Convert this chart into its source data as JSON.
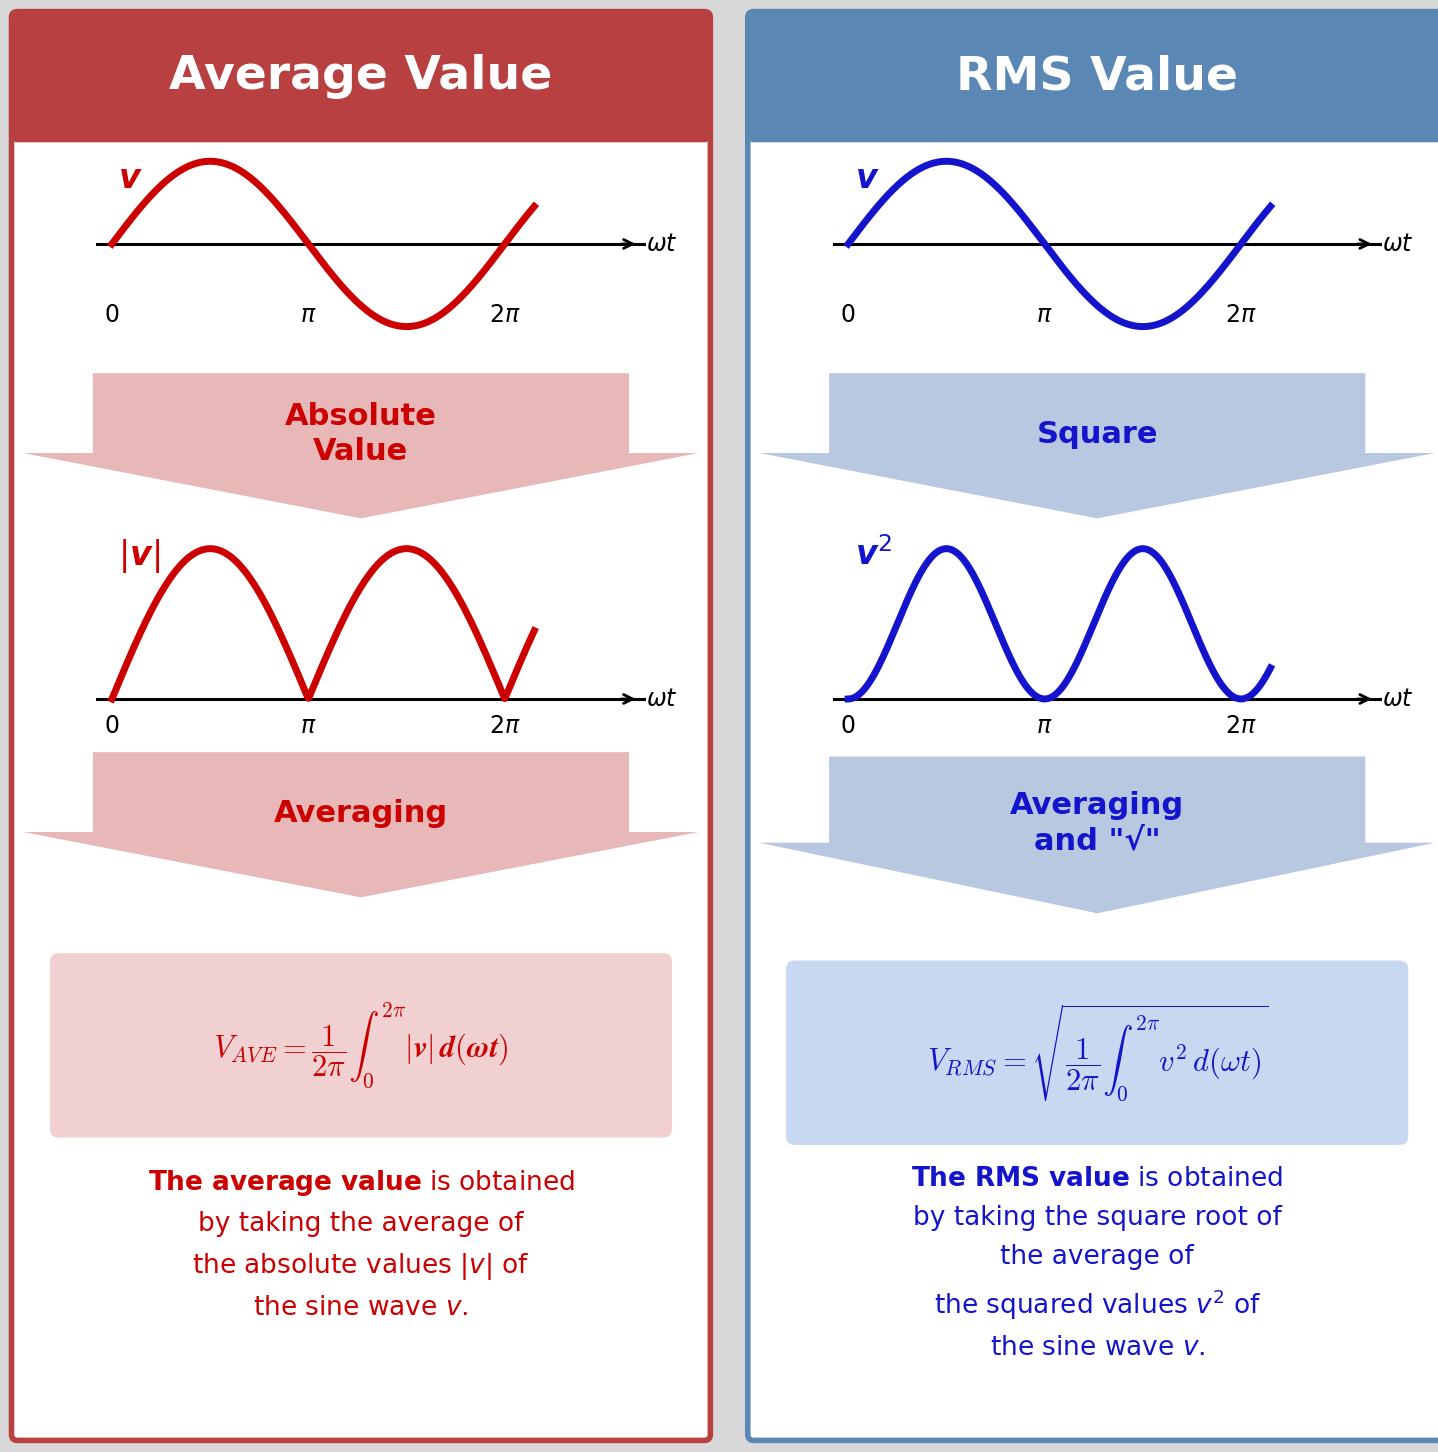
{
  "left_header_color": "#B94040",
  "right_header_color": "#5B87B5",
  "left_curve_color": "#CC0000",
  "right_curve_color": "#1414CC",
  "left_arrow_color": "#E8B8B8",
  "right_arrow_color": "#B8C8E0",
  "left_formula_bg": "#F0D0D0",
  "right_formula_bg": "#C8D8F0",
  "header_text_color": "#FFFFFF",
  "left_text_color": "#CC0000",
  "right_text_color": "#1414CC",
  "title_left": "Average Value",
  "title_right": "RMS Value",
  "arrow1_left": "Absolute\nValue",
  "arrow2_left": "Averaging",
  "arrow1_right": "Square",
  "arrow2_right": "Averaging\nand \"√\"",
  "outer_bg": "#D8D8D8",
  "inner_bg": "#FFFFFF",
  "curve_linewidth": 5.0
}
